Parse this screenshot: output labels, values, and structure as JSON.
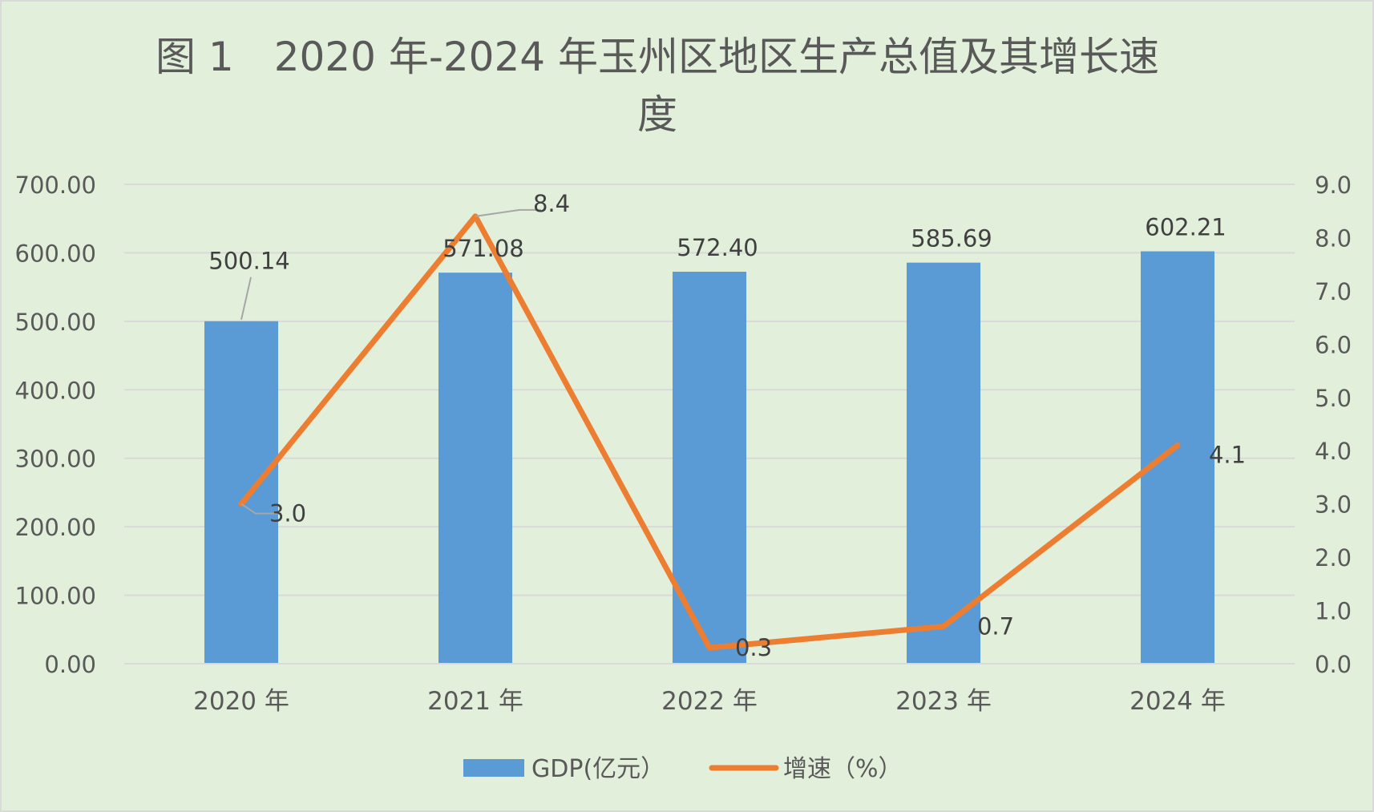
{
  "chart_data": {
    "type": "bar",
    "title_line1": "图 1　2020 年-2024 年玉州区地区生产总值及其增长速",
    "title_line2": "度",
    "categories": [
      "2020 年",
      "2021 年",
      "2022 年",
      "2023 年",
      "2024 年"
    ],
    "series": [
      {
        "name": "GDP(亿元）",
        "type": "bar",
        "axis": "left",
        "values": [
          500.14,
          571.08,
          572.4,
          585.69,
          602.21
        ],
        "value_labels": [
          "500.14",
          "571.08",
          "572.40",
          "585.69",
          "602.21"
        ],
        "color": "#5B9BD5"
      },
      {
        "name": "增速（%）",
        "type": "line",
        "axis": "right",
        "values": [
          3.0,
          8.4,
          0.3,
          0.7,
          4.1
        ],
        "value_labels": [
          "3.0",
          "8.4",
          "0.3",
          "0.7",
          "4.1"
        ],
        "color": "#ED7D31"
      }
    ],
    "y_left": {
      "lim": [
        0,
        700
      ],
      "ticks": [
        "0.00",
        "100.00",
        "200.00",
        "300.00",
        "400.00",
        "500.00",
        "600.00",
        "700.00"
      ]
    },
    "y_right": {
      "lim": [
        0,
        9
      ],
      "ticks": [
        "0.0",
        "1.0",
        "2.0",
        "3.0",
        "4.0",
        "5.0",
        "6.0",
        "7.0",
        "8.0",
        "9.0"
      ]
    },
    "grid": true,
    "legend_position": "bottom",
    "background_color": "#E2EFDA",
    "grid_color": "#D9D9D9"
  }
}
